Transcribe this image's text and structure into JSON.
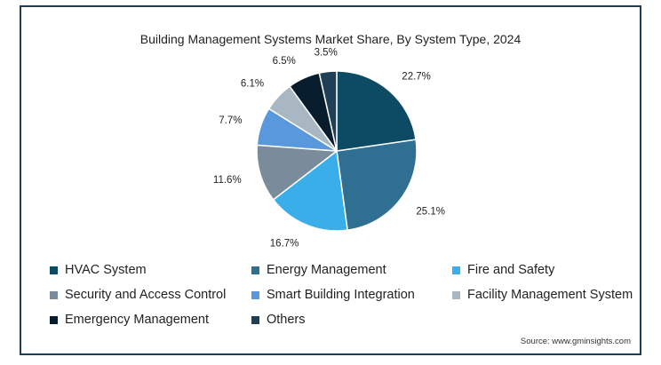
{
  "chart_data": {
    "type": "pie",
    "title": "Building Management Systems Market Share, By System Type, 2024",
    "slices": [
      {
        "name": "HVAC System",
        "value": 22.7,
        "label": "22.7%",
        "color": "#0d4a63"
      },
      {
        "name": "Energy Management",
        "value": 25.1,
        "label": "25.1%",
        "color": "#2e6f92"
      },
      {
        "name": "Fire and Safety",
        "value": 16.7,
        "label": "16.7%",
        "color": "#3aaee8"
      },
      {
        "name": "Security and Access Control",
        "value": 11.6,
        "label": "11.6%",
        "color": "#7a8b9c"
      },
      {
        "name": "Smart Building Integration",
        "value": 7.7,
        "label": "7.7%",
        "color": "#5a98de"
      },
      {
        "name": "Facility Management System",
        "value": 6.1,
        "label": "6.1%",
        "color": "#a9b7c2"
      },
      {
        "name": "Emergency Management",
        "value": 6.5,
        "label": "6.5%",
        "color": "#071c2c"
      },
      {
        "name": "Others",
        "value": 3.5,
        "label": "3.5%",
        "color": "#1f3f57"
      }
    ],
    "legend_placement": "bottom"
  },
  "source": "Source: www.gminsights.com"
}
